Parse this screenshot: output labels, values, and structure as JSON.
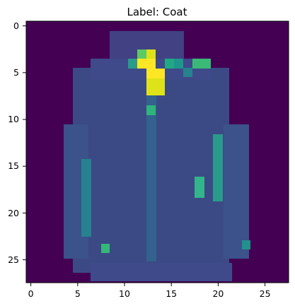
{
  "title": "Label: Coat",
  "colormap": "viridis",
  "image_size": 28,
  "x_ticks": [
    "0",
    "5",
    "10",
    "15",
    "20",
    "25"
  ],
  "y_ticks": [
    "0",
    "5",
    "10",
    "15",
    "20",
    "25"
  ],
  "colors": {
    "background": "#440154",
    "low": "#3b528b",
    "mid": "#21918c",
    "high": "#5ec962",
    "peak": "#fde725"
  }
}
